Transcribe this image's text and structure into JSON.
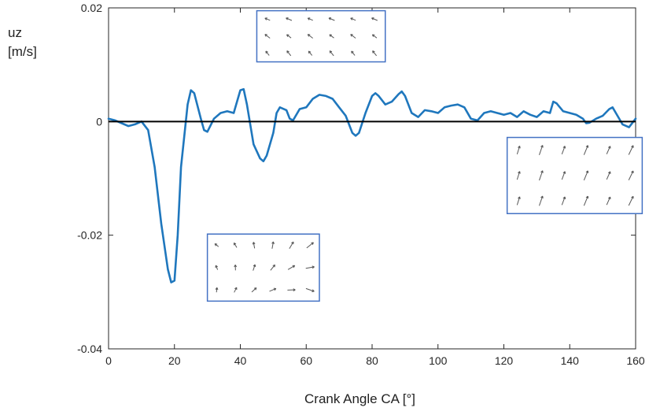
{
  "chart_data": {
    "type": "line",
    "title": "",
    "xlabel": "Crank Angle CA [°]",
    "ylabel_symbol": "uz",
    "ylabel_unit": "[m/s]",
    "xlim": [
      0,
      160
    ],
    "ylim": [
      -0.04,
      0.02
    ],
    "xticks": [
      0,
      20,
      40,
      60,
      80,
      100,
      120,
      140,
      160
    ],
    "xtick_labels": [
      "0",
      "20",
      "40",
      "60",
      "80",
      "100",
      "120",
      "140",
      "160"
    ],
    "yticks": [
      -0.04,
      -0.02,
      0,
      0.02
    ],
    "ytick_labels": [
      "-0.04",
      "-0.02",
      "0",
      "0.02"
    ],
    "grid": false,
    "reference_line": {
      "y": 0,
      "color": "#000000"
    },
    "series_color": "#1f77bd",
    "series": [
      {
        "x": [
          0,
          2,
          4,
          6,
          8,
          10,
          12,
          14,
          16,
          18,
          19,
          20,
          21,
          22,
          24,
          25,
          26,
          28,
          29,
          30,
          32,
          34,
          36,
          38,
          40,
          41,
          42,
          44,
          46,
          47,
          48,
          50,
          51,
          52,
          54,
          55,
          56,
          58,
          60,
          62,
          64,
          66,
          68,
          70,
          72,
          74,
          75,
          76,
          78,
          80,
          81,
          82,
          84,
          86,
          88,
          89,
          90,
          92,
          94,
          96,
          98,
          100,
          102,
          104,
          106,
          108,
          110,
          112,
          114,
          116,
          118,
          120,
          122,
          124,
          126,
          128,
          130,
          132,
          134,
          135,
          136,
          138,
          140,
          142,
          144,
          145,
          146,
          148,
          150,
          152,
          153,
          154,
          156,
          158,
          160
        ],
        "y": [
          0.0005,
          0.0002,
          -0.0003,
          -0.0008,
          -0.0005,
          0.0,
          -0.0015,
          -0.008,
          -0.018,
          -0.026,
          -0.0283,
          -0.028,
          -0.02,
          -0.008,
          0.003,
          0.0055,
          0.005,
          0.0005,
          -0.0015,
          -0.0018,
          0.0005,
          0.0015,
          0.0018,
          0.0015,
          0.0055,
          0.0057,
          0.003,
          -0.004,
          -0.0065,
          -0.007,
          -0.006,
          -0.002,
          0.0015,
          0.0025,
          0.002,
          0.0005,
          0.0002,
          0.0022,
          0.0025,
          0.004,
          0.0047,
          0.0045,
          0.004,
          0.0025,
          0.001,
          -0.002,
          -0.0025,
          -0.002,
          0.0015,
          0.0045,
          0.005,
          0.0045,
          0.003,
          0.0035,
          0.0048,
          0.0053,
          0.0045,
          0.0015,
          0.0008,
          0.002,
          0.0018,
          0.0015,
          0.0025,
          0.0028,
          0.003,
          0.0025,
          0.0005,
          0.0002,
          0.0015,
          0.0018,
          0.0015,
          0.0012,
          0.0015,
          0.0008,
          0.0018,
          0.0012,
          0.0008,
          0.0018,
          0.0015,
          0.0035,
          0.0032,
          0.0018,
          0.0015,
          0.0012,
          0.0005,
          -0.0003,
          -0.0002,
          0.0005,
          0.001,
          0.0022,
          0.0025,
          0.0015,
          -0.0005,
          -0.001,
          0.0005
        ]
      }
    ],
    "insets": [
      {
        "name": "vector-field-inset-top",
        "x_range": [
          45,
          84
        ],
        "y_range": [
          0.0195,
          0.0105
        ],
        "grid": [
          3,
          6
        ]
      },
      {
        "name": "vector-field-inset-right",
        "x_range": [
          121,
          162
        ],
        "y_range": [
          -0.0028,
          -0.0162
        ],
        "grid": [
          3,
          6
        ]
      },
      {
        "name": "vector-field-inset-bottom",
        "x_range": [
          30,
          64
        ],
        "y_range": [
          -0.0198,
          -0.0316
        ],
        "grid": [
          3,
          6
        ]
      }
    ]
  }
}
